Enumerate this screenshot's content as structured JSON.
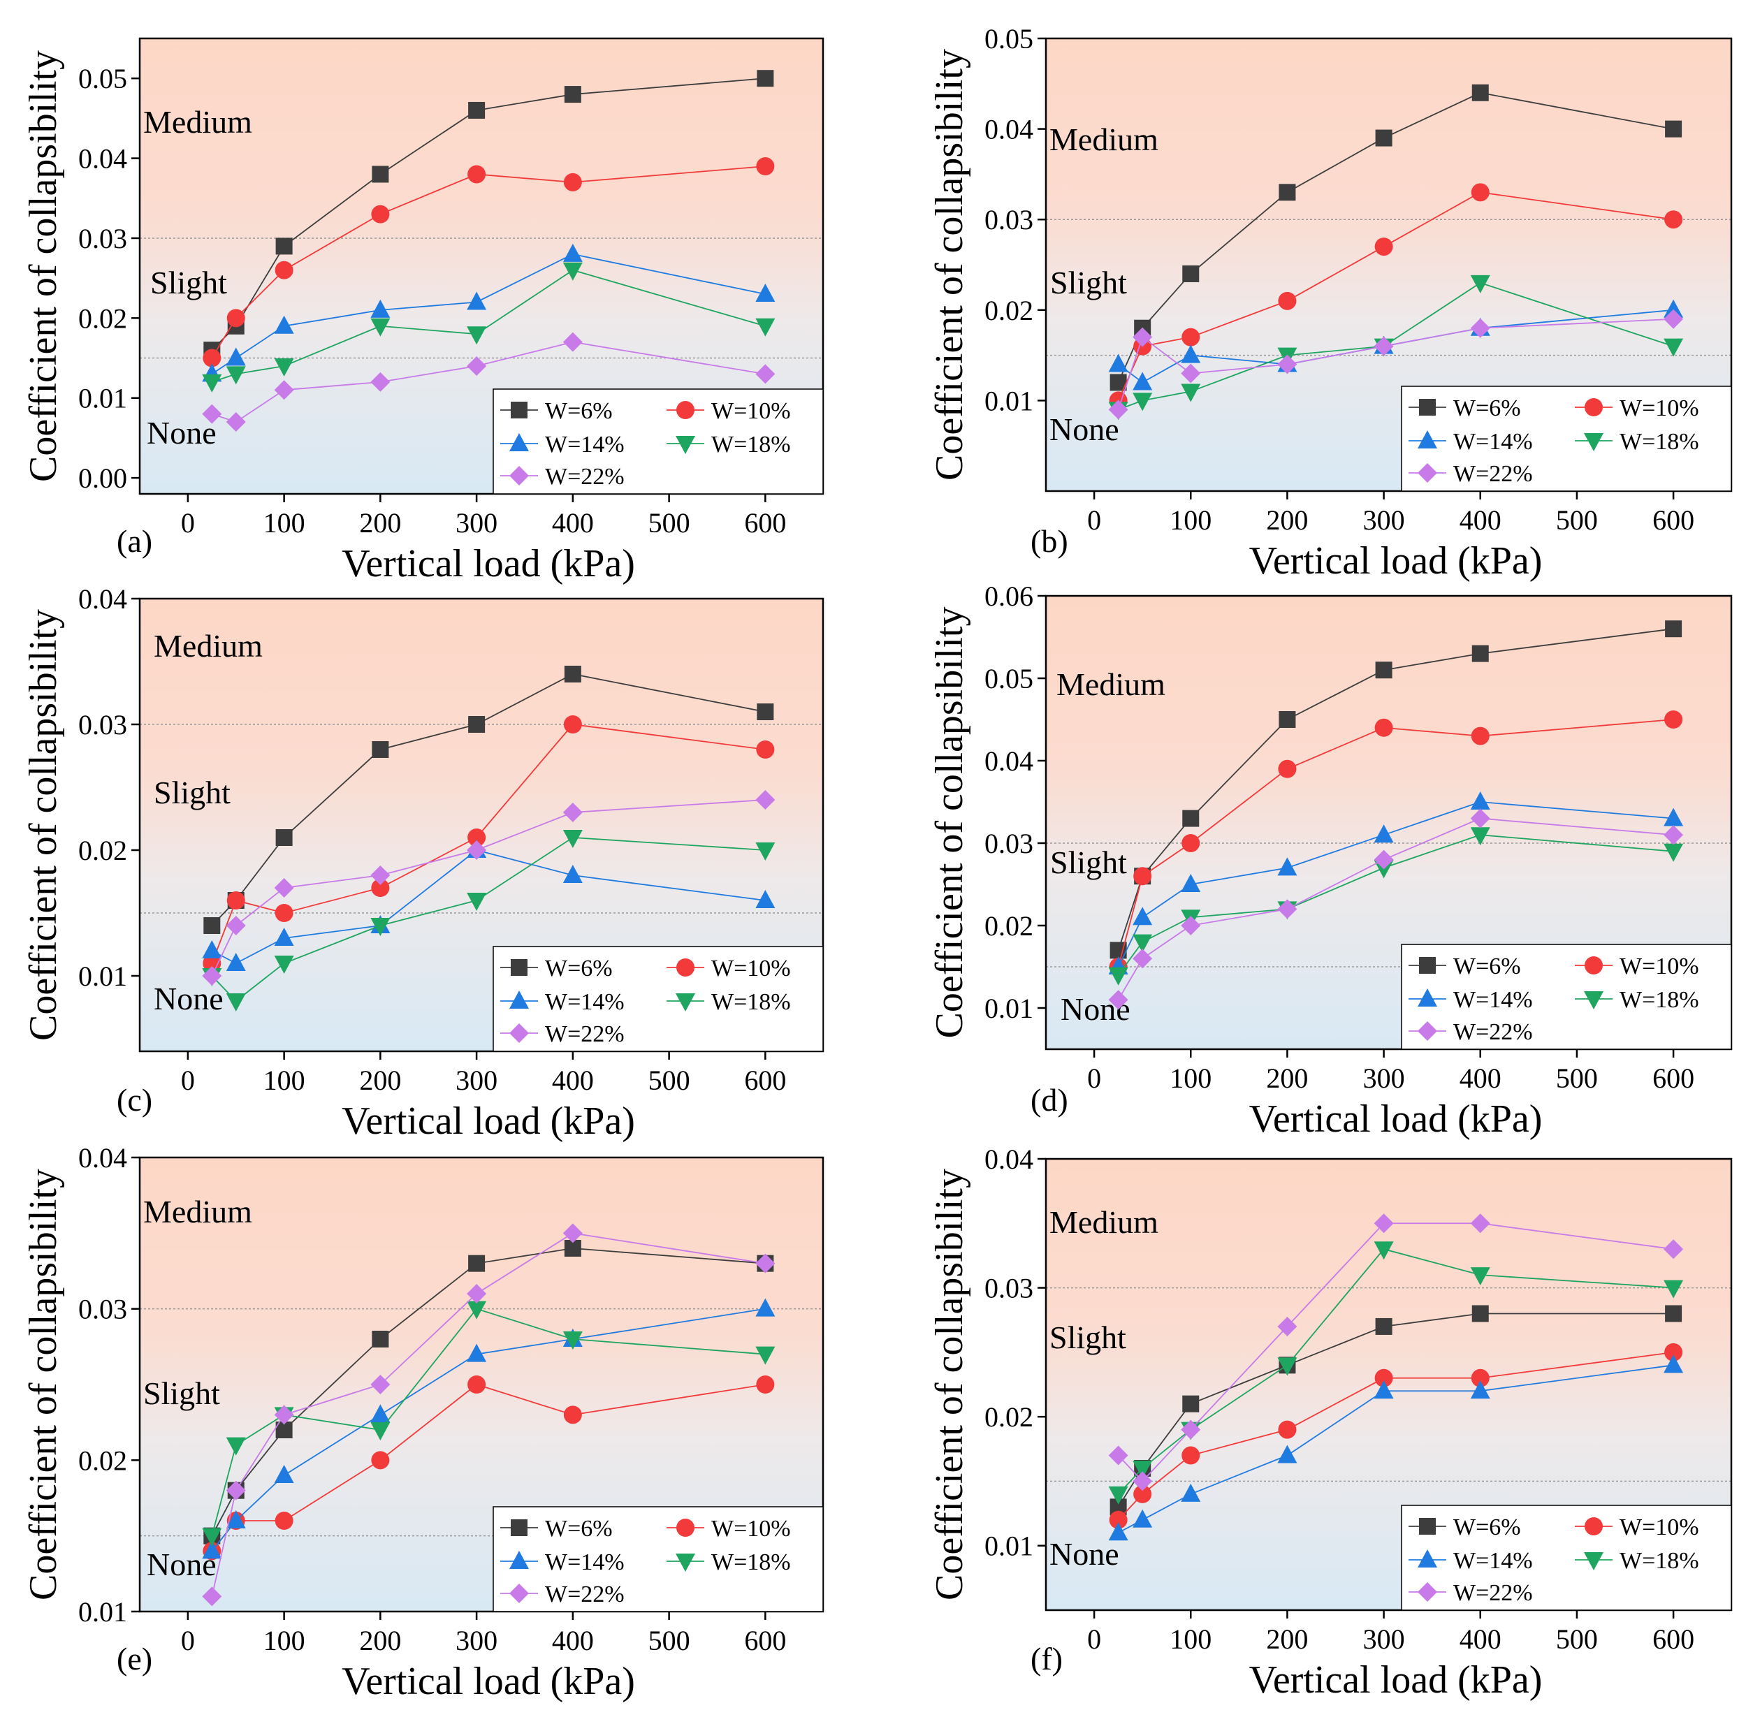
{
  "figure": {
    "colors": {
      "medium_zone_top": "#fdd9c9",
      "slight_zone": "#f6e8e6",
      "none_zone_bottom": "#dcebf5",
      "threshold_line": "#999999",
      "w6": "#3d3d3d",
      "w10": "#f23a3a",
      "w14": "#1f7be0",
      "w18": "#1ea55f",
      "w22": "#c77ae8"
    },
    "xlabel": "Vertical load (kPa)",
    "ylabel": "Coefficient of collapsibility",
    "zone_labels": {
      "medium": "Medium",
      "slight": "Slight",
      "none": "None"
    },
    "thresholds": [
      0.015,
      0.03
    ],
    "x_ticks": [
      0,
      100,
      200,
      300,
      400,
      500,
      600
    ],
    "x_tick_labels": [
      "0",
      "100",
      "200",
      "300",
      "400",
      "500",
      "600"
    ],
    "legend_labels": [
      "W=6%",
      "W=10%",
      "W=14%",
      "W=18%",
      "W=22%"
    ]
  },
  "chart_data": [
    {
      "type": "line",
      "panel": "(a)",
      "xlim": [
        -50,
        660
      ],
      "ylim": [
        -0.002,
        0.055
      ],
      "y_ticks": [
        0.0,
        0.01,
        0.02,
        0.03,
        0.04,
        0.05
      ],
      "y_tick_labels": [
        "0.00",
        "0.01",
        "0.02",
        "0.03",
        "0.04",
        "0.05"
      ],
      "x": [
        25,
        50,
        100,
        200,
        300,
        400,
        600
      ],
      "series": [
        {
          "name": "W=6%",
          "values": [
            0.016,
            0.019,
            0.029,
            0.038,
            0.046,
            0.048,
            0.05
          ]
        },
        {
          "name": "W=10%",
          "values": [
            0.015,
            0.02,
            0.026,
            0.033,
            0.038,
            0.037,
            0.039
          ]
        },
        {
          "name": "W=14%",
          "values": [
            0.013,
            0.015,
            0.019,
            0.021,
            0.022,
            0.028,
            0.023
          ]
        },
        {
          "name": "W=18%",
          "values": [
            0.012,
            0.013,
            0.014,
            0.019,
            0.018,
            0.026,
            0.019
          ]
        },
        {
          "name": "W=22%",
          "values": [
            0.008,
            0.007,
            0.011,
            0.012,
            0.014,
            0.017,
            0.013
          ]
        }
      ]
    },
    {
      "type": "line",
      "panel": "(b)",
      "xlim": [
        -50,
        660
      ],
      "ylim": [
        0.0,
        0.05
      ],
      "y_ticks": [
        0.01,
        0.02,
        0.03,
        0.04,
        0.05
      ],
      "y_tick_labels": [
        "0.01",
        "0.02",
        "0.03",
        "0.04",
        "0.05"
      ],
      "x": [
        25,
        50,
        100,
        200,
        300,
        400,
        600
      ],
      "series": [
        {
          "name": "W=6%",
          "values": [
            0.012,
            0.018,
            0.024,
            0.033,
            0.039,
            0.044,
            0.04
          ]
        },
        {
          "name": "W=10%",
          "values": [
            0.01,
            0.016,
            0.017,
            0.021,
            0.027,
            0.033,
            0.03
          ]
        },
        {
          "name": "W=14%",
          "values": [
            0.014,
            0.012,
            0.015,
            0.014,
            0.016,
            0.018,
            0.02
          ]
        },
        {
          "name": "W=18%",
          "values": [
            0.009,
            0.01,
            0.011,
            0.015,
            0.016,
            0.023,
            0.016
          ]
        },
        {
          "name": "W=22%",
          "values": [
            0.009,
            0.017,
            0.013,
            0.014,
            0.016,
            0.018,
            0.019
          ]
        }
      ]
    },
    {
      "type": "line",
      "panel": "(c)",
      "xlim": [
        -50,
        660
      ],
      "ylim": [
        0.004,
        0.04
      ],
      "y_ticks": [
        0.01,
        0.02,
        0.03,
        0.04
      ],
      "y_tick_labels": [
        "0.01",
        "0.02",
        "0.03",
        "0.04"
      ],
      "x": [
        25,
        50,
        100,
        200,
        300,
        400,
        600
      ],
      "series": [
        {
          "name": "W=6%",
          "values": [
            0.014,
            0.016,
            0.021,
            0.028,
            0.03,
            0.034,
            0.031
          ]
        },
        {
          "name": "W=10%",
          "values": [
            0.011,
            0.016,
            0.015,
            0.017,
            0.021,
            0.03,
            0.028
          ]
        },
        {
          "name": "W=14%",
          "values": [
            0.012,
            0.011,
            0.013,
            0.014,
            0.02,
            0.018,
            0.016
          ]
        },
        {
          "name": "W=18%",
          "values": [
            0.01,
            0.008,
            0.011,
            0.014,
            0.016,
            0.021,
            0.02
          ]
        },
        {
          "name": "W=22%",
          "values": [
            0.01,
            0.014,
            0.017,
            0.018,
            0.02,
            0.023,
            0.024
          ]
        }
      ]
    },
    {
      "type": "line",
      "panel": "(d)",
      "xlim": [
        -50,
        660
      ],
      "ylim": [
        0.005,
        0.06
      ],
      "y_ticks": [
        0.01,
        0.02,
        0.03,
        0.04,
        0.05,
        0.06
      ],
      "y_tick_labels": [
        "0.01",
        "0.02",
        "0.03",
        "0.04",
        "0.05",
        "0.06"
      ],
      "x": [
        25,
        50,
        100,
        200,
        300,
        400,
        600
      ],
      "series": [
        {
          "name": "W=6%",
          "values": [
            0.017,
            0.026,
            0.033,
            0.045,
            0.051,
            0.053,
            0.056
          ]
        },
        {
          "name": "W=10%",
          "values": [
            0.015,
            0.026,
            0.03,
            0.039,
            0.044,
            0.043,
            0.045
          ]
        },
        {
          "name": "W=14%",
          "values": [
            0.015,
            0.021,
            0.025,
            0.027,
            0.031,
            0.035,
            0.033
          ]
        },
        {
          "name": "W=18%",
          "values": [
            0.014,
            0.018,
            0.021,
            0.022,
            0.027,
            0.031,
            0.029
          ]
        },
        {
          "name": "W=22%",
          "values": [
            0.011,
            0.016,
            0.02,
            0.022,
            0.028,
            0.033,
            0.031
          ]
        }
      ]
    },
    {
      "type": "line",
      "panel": "(e)",
      "xlim": [
        -50,
        660
      ],
      "ylim": [
        0.01,
        0.04
      ],
      "y_ticks": [
        0.01,
        0.02,
        0.03,
        0.04
      ],
      "y_tick_labels": [
        "0.01",
        "0.02",
        "0.03",
        "0.04"
      ],
      "x": [
        25,
        50,
        100,
        200,
        300,
        400,
        600
      ],
      "series": [
        {
          "name": "W=6%",
          "values": [
            0.015,
            0.018,
            0.022,
            0.028,
            0.033,
            0.034,
            0.033
          ]
        },
        {
          "name": "W=10%",
          "values": [
            0.014,
            0.016,
            0.016,
            0.02,
            0.025,
            0.023,
            0.025
          ]
        },
        {
          "name": "W=14%",
          "values": [
            0.014,
            0.016,
            0.019,
            0.023,
            0.027,
            0.028,
            0.03
          ]
        },
        {
          "name": "W=18%",
          "values": [
            0.015,
            0.021,
            0.023,
            0.022,
            0.03,
            0.028,
            0.027
          ]
        },
        {
          "name": "W=22%",
          "values": [
            0.011,
            0.018,
            0.023,
            0.025,
            0.031,
            0.035,
            0.033
          ]
        }
      ]
    },
    {
      "type": "line",
      "panel": "(f)",
      "xlim": [
        -50,
        660
      ],
      "ylim": [
        0.005,
        0.04
      ],
      "y_ticks": [
        0.01,
        0.02,
        0.03,
        0.04
      ],
      "y_tick_labels": [
        "0.01",
        "0.02",
        "0.03",
        "0.04"
      ],
      "x": [
        25,
        50,
        100,
        200,
        300,
        400,
        600
      ],
      "series": [
        {
          "name": "W=6%",
          "values": [
            0.013,
            0.016,
            0.021,
            0.024,
            0.027,
            0.028,
            0.028
          ]
        },
        {
          "name": "W=10%",
          "values": [
            0.012,
            0.014,
            0.017,
            0.019,
            0.023,
            0.023,
            0.025
          ]
        },
        {
          "name": "W=14%",
          "values": [
            0.011,
            0.012,
            0.014,
            0.017,
            0.022,
            0.022,
            0.024
          ]
        },
        {
          "name": "W=18%",
          "values": [
            0.014,
            0.016,
            0.019,
            0.024,
            0.033,
            0.031,
            0.03
          ]
        },
        {
          "name": "W=22%",
          "values": [
            0.017,
            0.015,
            0.019,
            0.027,
            0.035,
            0.035,
            0.033
          ]
        }
      ]
    }
  ]
}
